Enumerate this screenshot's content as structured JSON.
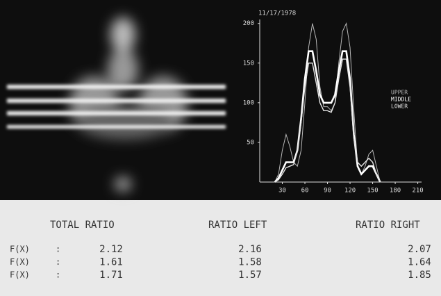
{
  "chart_data": {
    "type": "line",
    "title": "11/17/1978",
    "x": [
      20,
      25,
      30,
      35,
      40,
      45,
      50,
      55,
      60,
      65,
      70,
      75,
      80,
      85,
      90,
      95,
      100,
      105,
      110,
      115,
      120,
      125,
      130,
      135,
      140,
      145,
      150,
      155,
      160
    ],
    "series": [
      {
        "name": "UPPER",
        "color": "#b8b8b8",
        "values": [
          0,
          10,
          40,
          60,
          45,
          25,
          20,
          40,
          100,
          170,
          200,
          180,
          120,
          95,
          95,
          90,
          100,
          150,
          190,
          200,
          170,
          90,
          20,
          10,
          20,
          35,
          40,
          20,
          0
        ]
      },
      {
        "name": "MIDDLE",
        "color": "#ffffff",
        "values": [
          0,
          5,
          15,
          25,
          25,
          25,
          40,
          80,
          130,
          165,
          165,
          140,
          110,
          100,
          100,
          100,
          110,
          140,
          165,
          165,
          130,
          60,
          20,
          10,
          15,
          20,
          20,
          10,
          0
        ]
      },
      {
        "name": "LOWER",
        "color": "#e6e6e6",
        "values": [
          0,
          3,
          10,
          18,
          20,
          22,
          40,
          75,
          120,
          150,
          150,
          125,
          100,
          90,
          90,
          88,
          100,
          130,
          155,
          155,
          120,
          55,
          25,
          20,
          25,
          30,
          25,
          10,
          0
        ]
      }
    ],
    "xlim": [
      0,
      215
    ],
    "ylim": [
      0,
      205
    ],
    "xticks": [
      30,
      60,
      90,
      120,
      150,
      180,
      210
    ],
    "yticks": [
      50,
      100,
      150,
      200
    ]
  },
  "table": {
    "headers": [
      "TOTAL RATIO",
      "RATIO LEFT",
      "RATIO RIGHT"
    ],
    "rows": [
      [
        "F(X)",
        ":",
        "2.12",
        "2.16",
        "2.07"
      ],
      [
        "F(X)",
        ":",
        "1.61",
        "1.58",
        "1.64"
      ],
      [
        "F(X)",
        ":",
        "1.71",
        "1.57",
        "1.85"
      ]
    ]
  }
}
